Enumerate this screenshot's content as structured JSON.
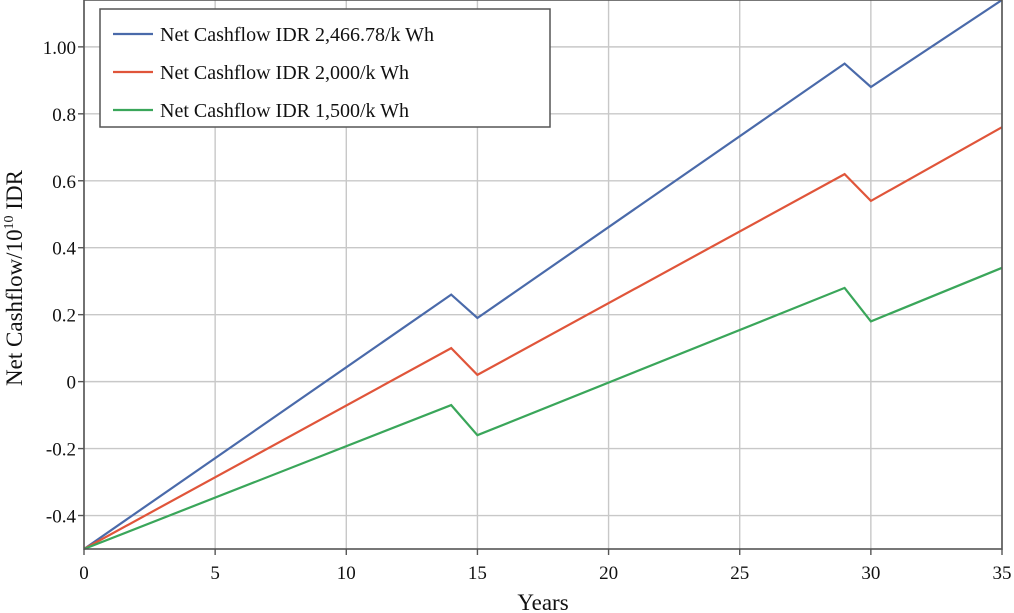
{
  "chart_data": {
    "type": "line",
    "xlabel": "Years",
    "ylabel_main": "Net Cashflow/10",
    "ylabel_exp": "10",
    "ylabel_unit": " IDR",
    "xlim": [
      0,
      35
    ],
    "ylim": [
      -0.5,
      1.14
    ],
    "x_ticks": [
      0,
      5,
      10,
      15,
      20,
      25,
      30,
      35
    ],
    "x_tick_labels": [
      "0",
      "5",
      "10",
      "15",
      "20",
      "25",
      "30",
      "35"
    ],
    "y_ticks": [
      -0.4,
      -0.2,
      0,
      0.2,
      0.4,
      0.6,
      0.8,
      1.0
    ],
    "y_tick_labels": [
      "-0.4",
      "-0.2",
      "0",
      "0.2",
      "0.4",
      "0.6",
      "0.8",
      "1.00"
    ],
    "grid": true,
    "legend_position": "top-left",
    "series": [
      {
        "name": "Net Cashflow IDR 2,466.78/k Wh",
        "color": "#4a6aaa",
        "x": [
          0,
          14,
          15,
          29,
          30,
          35
        ],
        "y": [
          -0.5,
          0.26,
          0.19,
          0.95,
          0.88,
          1.14
        ]
      },
      {
        "name": "Net Cashflow IDR 2,000/k Wh",
        "color": "#e0553a",
        "x": [
          0,
          14,
          15,
          29,
          30,
          35
        ],
        "y": [
          -0.5,
          0.1,
          0.02,
          0.62,
          0.54,
          0.76
        ]
      },
      {
        "name": "Net Cashflow IDR 1,500/k Wh",
        "color": "#3aa65a",
        "x": [
          0,
          14,
          15,
          29,
          30,
          35
        ],
        "y": [
          -0.5,
          -0.07,
          -0.16,
          0.28,
          0.18,
          0.34
        ]
      }
    ]
  }
}
